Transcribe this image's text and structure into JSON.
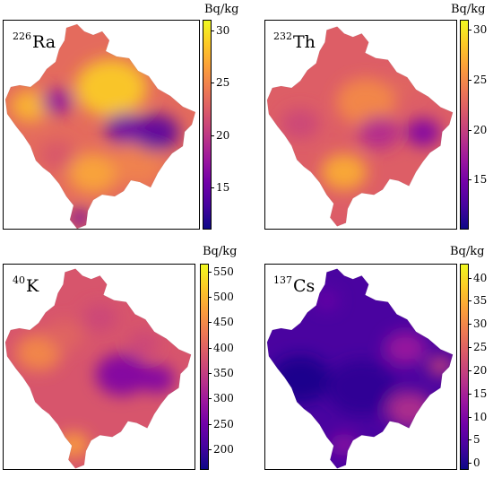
{
  "colormap": [
    "#0d0887",
    "#46039f",
    "#7201a8",
    "#9c179e",
    "#bd3786",
    "#d8576b",
    "#ed7953",
    "#fb9f3a",
    "#fdca26",
    "#f0f921"
  ],
  "panels": [
    {
      "label_mass": "226",
      "label_element": "Ra",
      "unit": "Bq/kg",
      "range": [
        11,
        31
      ],
      "ticks": [
        "15",
        "20",
        "25",
        "30"
      ],
      "tick_values": [
        15,
        20,
        25,
        30
      ],
      "map_level": 0.62
    },
    {
      "label_mass": "232",
      "label_element": "Th",
      "unit": "Bq/kg",
      "range": [
        10,
        31
      ],
      "ticks": [
        "15",
        "20",
        "25",
        "30"
      ],
      "tick_values": [
        15,
        20,
        25,
        30
      ],
      "map_level": 0.58
    },
    {
      "label_mass": "40",
      "label_element": "K",
      "unit": "Bq/kg",
      "range": [
        160,
        565
      ],
      "ticks": [
        "200",
        "250",
        "300",
        "350",
        "400",
        "450",
        "500",
        "550"
      ],
      "tick_values": [
        200,
        250,
        300,
        350,
        400,
        450,
        500,
        550
      ],
      "map_level": 0.55
    },
    {
      "label_mass": "137",
      "label_element": "Cs",
      "unit": "Bq/kg",
      "range": [
        -1.5,
        43
      ],
      "ticks": [
        "0",
        "5",
        "10",
        "15",
        "20",
        "25",
        "30",
        "35",
        "40"
      ],
      "tick_values": [
        0,
        5,
        10,
        15,
        20,
        25,
        30,
        35,
        40
      ],
      "map_level": 0.12
    }
  ]
}
